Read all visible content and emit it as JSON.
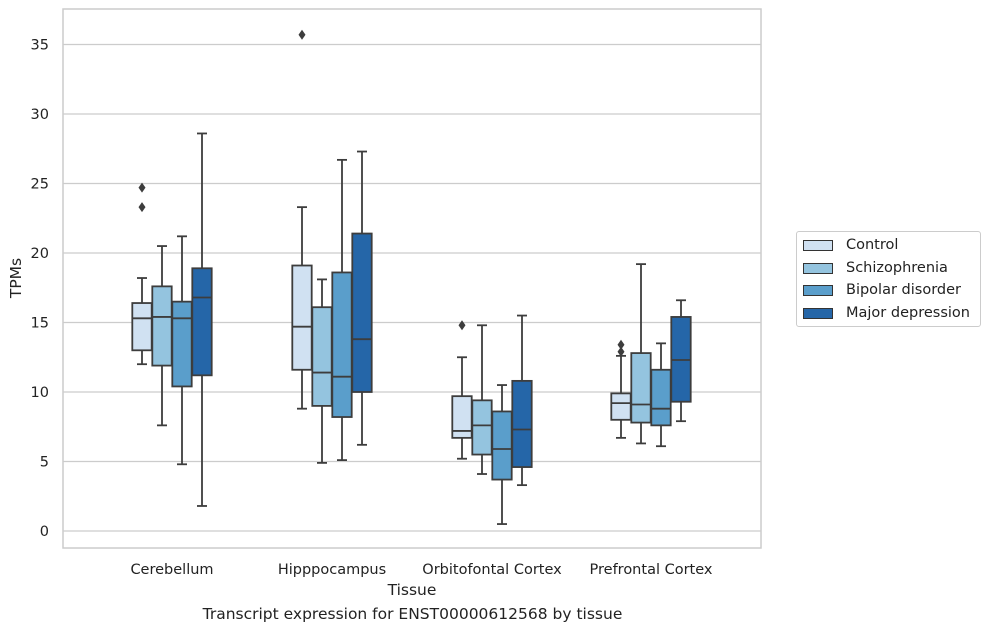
{
  "chart_data": {
    "type": "box",
    "xlabel": "Tissue",
    "ylabel": "TPMs",
    "ylim": [
      -1.2,
      37.2
    ],
    "yticks": [
      0,
      5,
      10,
      15,
      20,
      25,
      30,
      35
    ],
    "grid": true,
    "legend_position": "right",
    "categories": [
      "Cerebellum",
      "Hipppocampus",
      "Orbitofontal Cortex",
      "Prefrontal Cortex"
    ],
    "series": [
      {
        "name": "Control",
        "color": "#d0e1f2",
        "boxes": [
          {
            "whislo": 12.0,
            "q1": 13.0,
            "med": 15.3,
            "q3": 16.4,
            "whishi": 18.2,
            "fliers": [
              23.3,
              24.7
            ]
          },
          {
            "whislo": 8.8,
            "q1": 11.6,
            "med": 14.7,
            "q3": 19.1,
            "whishi": 23.3,
            "fliers": [
              35.7
            ]
          },
          {
            "whislo": 5.2,
            "q1": 6.7,
            "med": 7.2,
            "q3": 9.7,
            "whishi": 12.5,
            "fliers": [
              14.8
            ]
          },
          {
            "whislo": 6.7,
            "q1": 8.0,
            "med": 9.2,
            "q3": 9.9,
            "whishi": 12.6,
            "fliers": [
              12.9,
              13.4
            ]
          }
        ]
      },
      {
        "name": "Schizophrenia",
        "color": "#94c4df",
        "boxes": [
          {
            "whislo": 7.6,
            "q1": 11.9,
            "med": 15.4,
            "q3": 17.6,
            "whishi": 20.5,
            "fliers": []
          },
          {
            "whislo": 4.9,
            "q1": 9.0,
            "med": 11.4,
            "q3": 16.1,
            "whishi": 18.1,
            "fliers": []
          },
          {
            "whislo": 4.1,
            "q1": 5.5,
            "med": 7.6,
            "q3": 9.4,
            "whishi": 14.8,
            "fliers": []
          },
          {
            "whislo": 6.3,
            "q1": 7.8,
            "med": 9.1,
            "q3": 12.8,
            "whishi": 19.2,
            "fliers": []
          }
        ]
      },
      {
        "name": "Bipolar disorder",
        "color": "#5a9ecb",
        "boxes": [
          {
            "whislo": 4.8,
            "q1": 10.4,
            "med": 15.3,
            "q3": 16.5,
            "whishi": 21.2,
            "fliers": []
          },
          {
            "whislo": 5.1,
            "q1": 8.2,
            "med": 11.1,
            "q3": 18.6,
            "whishi": 26.7,
            "fliers": []
          },
          {
            "whislo": 0.5,
            "q1": 3.7,
            "med": 5.9,
            "q3": 8.6,
            "whishi": 10.5,
            "fliers": []
          },
          {
            "whislo": 6.1,
            "q1": 7.6,
            "med": 8.8,
            "q3": 11.6,
            "whishi": 13.5,
            "fliers": []
          }
        ]
      },
      {
        "name": "Major depression",
        "color": "#2566a8",
        "boxes": [
          {
            "whislo": 1.8,
            "q1": 11.2,
            "med": 16.8,
            "q3": 18.9,
            "whishi": 28.6,
            "fliers": []
          },
          {
            "whislo": 6.2,
            "q1": 10.0,
            "med": 13.8,
            "q3": 21.4,
            "whishi": 27.3,
            "fliers": []
          },
          {
            "whislo": 3.3,
            "q1": 4.6,
            "med": 7.3,
            "q3": 10.8,
            "whishi": 15.5,
            "fliers": []
          },
          {
            "whislo": 7.9,
            "q1": 9.3,
            "med": 12.3,
            "q3": 15.4,
            "whishi": 16.6,
            "fliers": []
          }
        ]
      }
    ],
    "caption": "Transcript expression for ENST00000612568 by tissue"
  }
}
